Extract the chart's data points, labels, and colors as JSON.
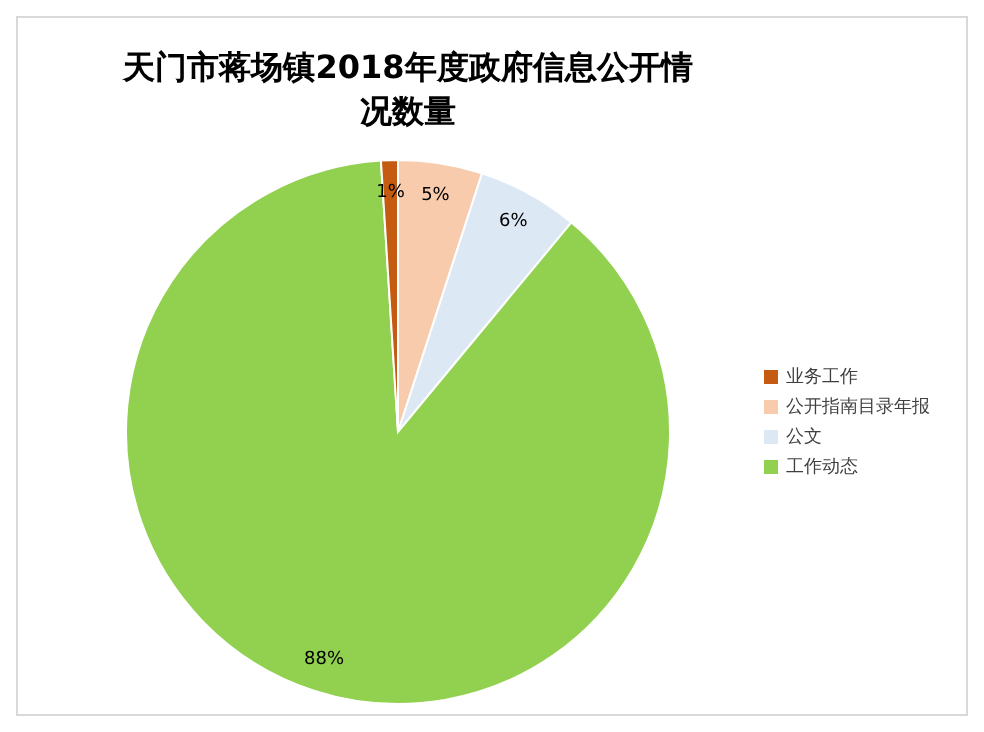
{
  "chart_data": {
    "type": "pie",
    "title": "天门市蒋场镇2018年度政府信息公开情况数量",
    "categories": [
      "公开指南目录年报",
      "公文",
      "工作动态",
      "业务工作"
    ],
    "values": [
      5,
      6,
      88,
      1
    ],
    "colors": [
      "#f8cbad",
      "#dde8f5",
      "#92d050",
      "#c55a11"
    ],
    "value_labels": [
      "5%",
      "6%",
      "88%",
      "1%"
    ],
    "legend": "right"
  }
}
